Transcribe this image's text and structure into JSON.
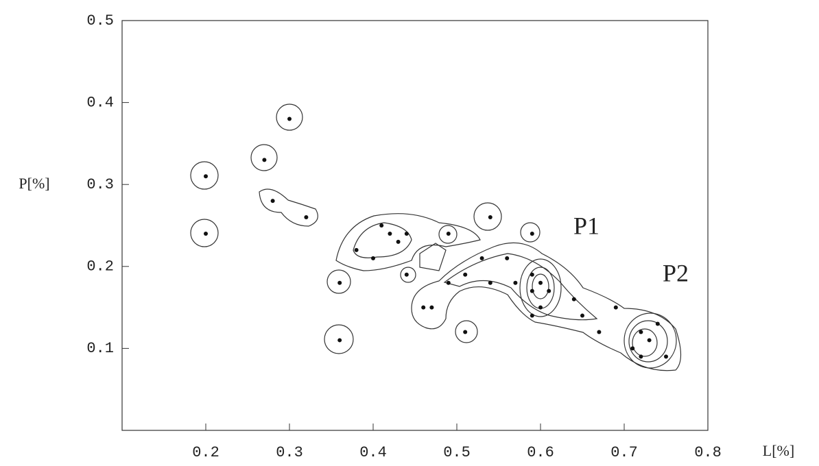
{
  "chart_data": {
    "type": "scatter",
    "x_label": "L[%]",
    "y_label": "P[%]",
    "annotations": [
      "P1",
      "P2"
    ],
    "x": [
      0.2,
      0.2,
      0.27,
      0.28,
      0.3,
      0.32,
      0.36,
      0.36,
      0.38,
      0.4,
      0.41,
      0.42,
      0.43,
      0.44,
      0.44,
      0.46,
      0.47,
      0.49,
      0.49,
      0.51,
      0.51,
      0.53,
      0.54,
      0.54,
      0.56,
      0.57,
      0.59,
      0.59,
      0.59,
      0.59,
      0.6,
      0.61,
      0.6,
      0.64,
      0.65,
      0.67,
      0.69,
      0.72,
      0.71,
      0.72,
      0.73,
      0.74,
      0.75
    ],
    "values": [
      0.31,
      0.24,
      0.33,
      0.28,
      0.38,
      0.26,
      0.18,
      0.11,
      0.22,
      0.21,
      0.25,
      0.24,
      0.23,
      0.24,
      0.19,
      0.15,
      0.15,
      0.24,
      0.18,
      0.19,
      0.12,
      0.21,
      0.26,
      0.18,
      0.21,
      0.18,
      0.24,
      0.19,
      0.17,
      0.14,
      0.18,
      0.17,
      0.15,
      0.16,
      0.14,
      0.12,
      0.15,
      0.12,
      0.1,
      0.09,
      0.11,
      0.13,
      0.09
    ],
    "color": "#111111",
    "xlim": [
      0.1,
      0.8
    ],
    "ylim": [
      0,
      0.5
    ],
    "xticks": [
      0.2,
      0.3,
      0.4,
      0.5,
      0.6,
      0.7,
      0.8
    ],
    "yticks": [
      0.1,
      0.2,
      0.3,
      0.4,
      0.5
    ]
  }
}
